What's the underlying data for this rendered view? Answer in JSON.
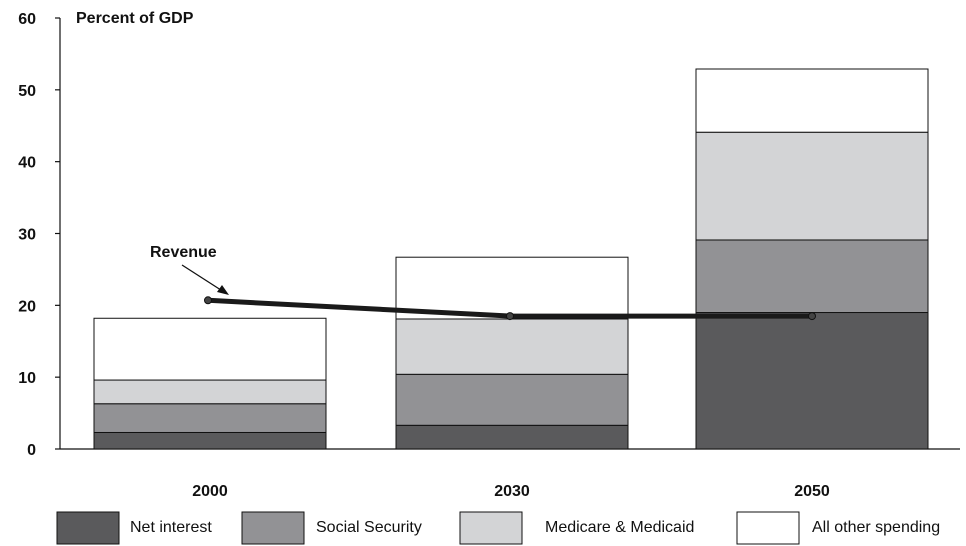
{
  "chart_data": {
    "type": "bar",
    "stacked": true,
    "ylabel": "Percent of GDP",
    "ylim": [
      0,
      60
    ],
    "yticks": [
      0,
      10,
      20,
      30,
      40,
      50,
      60
    ],
    "categories": [
      "2000",
      "2030",
      "2050"
    ],
    "series": [
      {
        "name": "Net interest",
        "color": "#5a5a5c",
        "values": [
          2.3,
          3.3,
          19.0
        ]
      },
      {
        "name": "Social Security",
        "color": "#929295",
        "values": [
          4.0,
          7.1,
          10.1
        ]
      },
      {
        "name": "Medicare & Medicaid",
        "color": "#d3d4d6",
        "values": [
          3.3,
          7.7,
          15.0
        ]
      },
      {
        "name": "All other spending",
        "color": "#ffffff",
        "values": [
          8.6,
          8.6,
          8.8
        ]
      }
    ],
    "line": {
      "name": "Revenue",
      "values": [
        20.7,
        18.5,
        18.5
      ],
      "color": "#1a1a1a"
    },
    "annotation": "Revenue",
    "legend_position": "bottom"
  }
}
